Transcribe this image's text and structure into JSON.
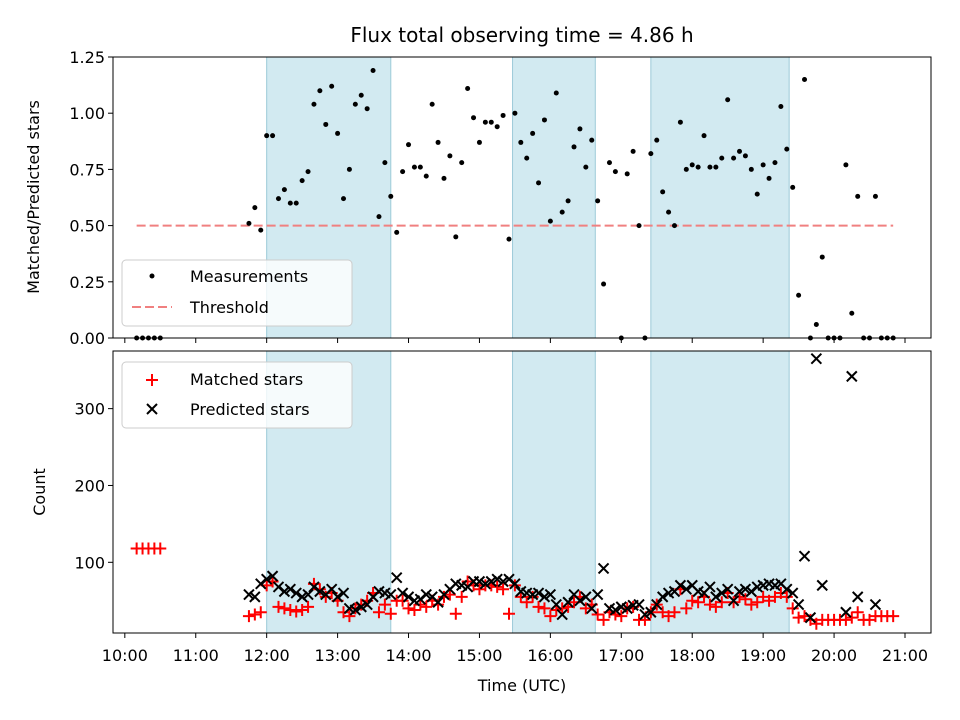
{
  "chart_data": [
    {
      "type": "scatter",
      "title": "Flux total observing time = 4.86 h",
      "ylabel": "Matched/Predicted stars",
      "xlim": [
        "09:50",
        "21:22"
      ],
      "ylim": [
        0,
        1.25
      ],
      "yticks": [
        "0.00",
        "0.25",
        "0.50",
        "0.75",
        "1.00",
        "1.25"
      ],
      "shaded_intervals": [
        [
          "12:00",
          "13:45"
        ],
        [
          "15:28",
          "16:38"
        ],
        [
          "17:25",
          "19:22"
        ]
      ],
      "legend_position": "lower-left",
      "threshold": {
        "name": "Threshold",
        "value": 0.5,
        "x_range": [
          "10:10",
          "20:50"
        ],
        "color": "#f08080"
      },
      "series": [
        {
          "name": "Measurements",
          "color": "#000000",
          "marker": "dot",
          "x": [
            "10:10",
            "10:15",
            "10:20",
            "10:25",
            "10:30",
            "11:45",
            "11:50",
            "11:55",
            "12:00",
            "12:05",
            "12:10",
            "12:15",
            "12:20",
            "12:25",
            "12:30",
            "12:35",
            "12:40",
            "12:45",
            "12:50",
            "12:55",
            "13:00",
            "13:05",
            "13:10",
            "13:15",
            "13:20",
            "13:25",
            "13:30",
            "13:35",
            "13:40",
            "13:45",
            "13:50",
            "13:55",
            "14:00",
            "14:05",
            "14:10",
            "14:15",
            "14:20",
            "14:25",
            "14:30",
            "14:35",
            "14:40",
            "14:45",
            "14:50",
            "14:55",
            "15:00",
            "15:05",
            "15:10",
            "15:15",
            "15:20",
            "15:25",
            "15:30",
            "15:35",
            "15:40",
            "15:45",
            "15:50",
            "15:55",
            "16:00",
            "16:05",
            "16:10",
            "16:15",
            "16:20",
            "16:25",
            "16:30",
            "16:35",
            "16:40",
            "16:45",
            "16:50",
            "16:55",
            "17:00",
            "17:05",
            "17:10",
            "17:15",
            "17:20",
            "17:25",
            "17:30",
            "17:35",
            "17:40",
            "17:45",
            "17:50",
            "17:55",
            "18:00",
            "18:05",
            "18:10",
            "18:15",
            "18:20",
            "18:25",
            "18:30",
            "18:35",
            "18:40",
            "18:45",
            "18:50",
            "18:55",
            "19:00",
            "19:05",
            "19:10",
            "19:15",
            "19:20",
            "19:25",
            "19:30",
            "19:35",
            "19:40",
            "19:45",
            "19:50",
            "19:55",
            "20:00",
            "20:05",
            "20:10",
            "20:15",
            "20:20",
            "20:25",
            "20:30",
            "20:35",
            "20:40",
            "20:45",
            "20:50"
          ],
          "y": [
            0,
            0,
            0,
            0,
            0,
            0.51,
            0.58,
            0.48,
            0.9,
            0.9,
            0.62,
            0.66,
            0.6,
            0.6,
            0.7,
            0.74,
            1.04,
            1.1,
            0.95,
            1.12,
            0.91,
            0.62,
            0.75,
            1.04,
            1.08,
            1.02,
            1.19,
            0.54,
            0.78,
            0.63,
            0.47,
            0.74,
            0.86,
            0.76,
            0.76,
            0.72,
            1.04,
            0.87,
            0.71,
            0.81,
            0.45,
            0.78,
            1.11,
            0.98,
            0.87,
            0.96,
            0.96,
            0.94,
            0.99,
            0.44,
            1.0,
            0.87,
            0.8,
            0.91,
            0.69,
            0.97,
            0.52,
            1.09,
            0.56,
            0.61,
            0.85,
            0.93,
            0.76,
            0.88,
            0.61,
            0.24,
            0.78,
            0.74,
            0,
            0.73,
            0.83,
            0.5,
            0,
            0.82,
            0.88,
            0.65,
            0.56,
            0.5,
            0.96,
            0.75,
            0.77,
            0.76,
            0.9,
            0.76,
            0.76,
            0.8,
            1.06,
            0.8,
            0.83,
            0.81,
            0.75,
            0.64,
            0.77,
            0.71,
            0.78,
            1.03,
            0.84,
            0.67,
            0.19,
            1.15,
            0,
            0.06,
            0.36,
            0,
            0,
            0,
            0.77,
            0.11,
            0.63,
            0,
            0,
            0.63,
            0,
            0,
            0
          ]
        }
      ]
    },
    {
      "type": "scatter",
      "xlabel": "Time (UTC)",
      "ylabel": "Count",
      "xlim": [
        "09:50",
        "21:22"
      ],
      "ylim": [
        8,
        375
      ],
      "yticks": [
        "100",
        "200",
        "300"
      ],
      "xticks": [
        "10:00",
        "11:00",
        "12:00",
        "13:00",
        "14:00",
        "15:00",
        "16:00",
        "17:00",
        "18:00",
        "19:00",
        "20:00",
        "21:00"
      ],
      "shaded_intervals": [
        [
          "12:00",
          "13:45"
        ],
        [
          "15:28",
          "16:38"
        ],
        [
          "17:25",
          "19:22"
        ]
      ],
      "legend_position": "top-left",
      "series": [
        {
          "name": "Matched stars",
          "color": "#ff0000",
          "marker": "plus",
          "x": [
            "10:10",
            "10:15",
            "10:20",
            "10:25",
            "10:30",
            "11:45",
            "11:50",
            "11:55",
            "12:00",
            "12:05",
            "12:10",
            "12:15",
            "12:20",
            "12:25",
            "12:30",
            "12:35",
            "12:40",
            "12:45",
            "12:50",
            "12:55",
            "13:00",
            "13:05",
            "13:10",
            "13:15",
            "13:20",
            "13:25",
            "13:30",
            "13:35",
            "13:40",
            "13:45",
            "13:50",
            "13:55",
            "14:00",
            "14:05",
            "14:10",
            "14:15",
            "14:20",
            "14:25",
            "14:30",
            "14:35",
            "14:40",
            "14:45",
            "14:50",
            "14:55",
            "15:00",
            "15:05",
            "15:10",
            "15:15",
            "15:20",
            "15:25",
            "15:30",
            "15:35",
            "15:40",
            "15:45",
            "15:50",
            "15:55",
            "16:00",
            "16:05",
            "16:10",
            "16:15",
            "16:20",
            "16:25",
            "16:30",
            "16:35",
            "16:40",
            "16:45",
            "16:50",
            "16:55",
            "17:00",
            "17:05",
            "17:10",
            "17:15",
            "17:20",
            "17:25",
            "17:30",
            "17:35",
            "17:40",
            "17:45",
            "17:50",
            "17:55",
            "18:00",
            "18:05",
            "18:10",
            "18:15",
            "18:20",
            "18:25",
            "18:30",
            "18:35",
            "18:40",
            "18:45",
            "18:50",
            "18:55",
            "19:00",
            "19:05",
            "19:10",
            "19:15",
            "19:20",
            "19:25",
            "19:30",
            "19:35",
            "19:40",
            "19:45",
            "19:50",
            "19:55",
            "20:00",
            "20:05",
            "20:10",
            "20:15",
            "20:20",
            "20:25",
            "20:30",
            "20:35",
            "20:40",
            "20:45",
            "20:50"
          ],
          "y": [
            118,
            118,
            118,
            118,
            118,
            30,
            32,
            35,
            70,
            75,
            42,
            40,
            38,
            36,
            38,
            42,
            72,
            65,
            55,
            60,
            50,
            35,
            30,
            40,
            45,
            50,
            60,
            35,
            45,
            33,
            50,
            50,
            40,
            38,
            45,
            42,
            50,
            45,
            55,
            58,
            33,
            55,
            75,
            70,
            65,
            70,
            70,
            68,
            65,
            33,
            70,
            55,
            48,
            55,
            42,
            40,
            30,
            38,
            40,
            42,
            48,
            55,
            40,
            45,
            32,
            25,
            35,
            32,
            30,
            40,
            42,
            25,
            25,
            35,
            45,
            35,
            30,
            35,
            65,
            40,
            50,
            48,
            55,
            45,
            42,
            48,
            60,
            48,
            55,
            52,
            45,
            48,
            55,
            50,
            55,
            60,
            55,
            40,
            28,
            30,
            25,
            20,
            25,
            25,
            25,
            25,
            25,
            28,
            35,
            25,
            25,
            30,
            30,
            30,
            30
          ]
        },
        {
          "name": "Predicted stars",
          "color": "#000000",
          "marker": "x",
          "x": [
            "11:45",
            "11:50",
            "11:55",
            "12:00",
            "12:05",
            "12:10",
            "12:15",
            "12:20",
            "12:25",
            "12:30",
            "12:35",
            "12:40",
            "12:45",
            "12:50",
            "12:55",
            "13:00",
            "13:05",
            "13:10",
            "13:15",
            "13:20",
            "13:25",
            "13:30",
            "13:35",
            "13:40",
            "13:45",
            "13:50",
            "13:55",
            "14:00",
            "14:05",
            "14:10",
            "14:15",
            "14:20",
            "14:25",
            "14:30",
            "14:35",
            "14:40",
            "14:45",
            "14:50",
            "14:55",
            "15:00",
            "15:05",
            "15:10",
            "15:15",
            "15:20",
            "15:25",
            "15:30",
            "15:35",
            "15:40",
            "15:45",
            "15:50",
            "15:55",
            "16:00",
            "16:05",
            "16:10",
            "16:15",
            "16:20",
            "16:25",
            "16:30",
            "16:35",
            "16:40",
            "16:45",
            "16:50",
            "16:55",
            "17:00",
            "17:05",
            "17:10",
            "17:15",
            "17:20",
            "17:25",
            "17:30",
            "17:35",
            "17:40",
            "17:45",
            "17:50",
            "17:55",
            "18:00",
            "18:05",
            "18:10",
            "18:15",
            "18:20",
            "18:25",
            "18:30",
            "18:35",
            "18:40",
            "18:45",
            "18:50",
            "18:55",
            "19:00",
            "19:05",
            "19:10",
            "19:15",
            "19:20",
            "19:25",
            "19:30",
            "19:35",
            "19:40",
            "19:45",
            "19:50",
            "20:10",
            "20:15",
            "20:20",
            "20:35"
          ],
          "y": [
            58,
            55,
            72,
            78,
            82,
            68,
            62,
            65,
            60,
            55,
            58,
            68,
            62,
            58,
            65,
            55,
            60,
            40,
            38,
            42,
            45,
            55,
            62,
            60,
            58,
            80,
            60,
            55,
            50,
            52,
            58,
            55,
            48,
            58,
            65,
            72,
            70,
            68,
            75,
            75,
            72,
            75,
            78,
            75,
            78,
            72,
            62,
            60,
            58,
            60,
            55,
            58,
            45,
            32,
            48,
            58,
            50,
            55,
            40,
            58,
            92,
            40,
            38,
            42,
            40,
            44,
            45,
            32,
            35,
            45,
            55,
            60,
            62,
            70,
            65,
            70,
            62,
            60,
            68,
            55,
            60,
            65,
            50,
            62,
            65,
            62,
            68,
            70,
            72,
            70,
            72,
            65,
            60,
            45,
            108,
            28,
            365,
            70,
            35,
            342,
            55,
            45
          ]
        }
      ]
    }
  ]
}
